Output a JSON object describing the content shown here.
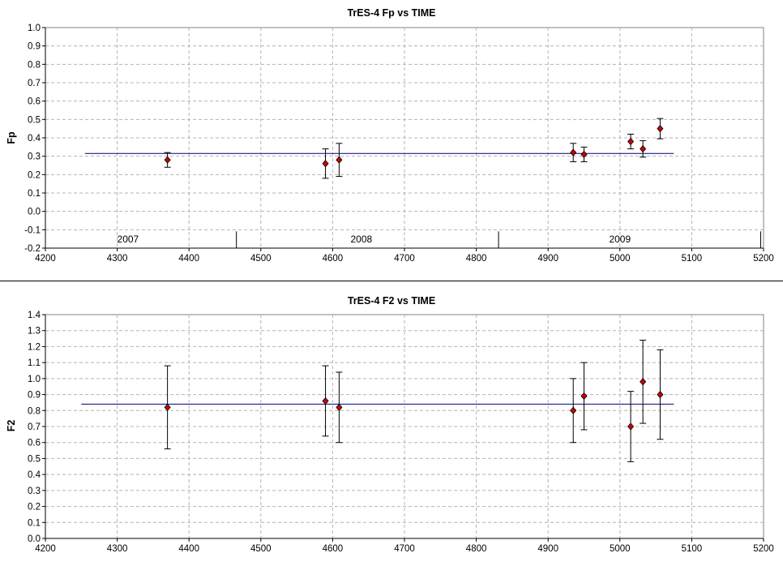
{
  "colors": {
    "marker_fill": "#cc0000",
    "marker_stroke": "#000000",
    "mean_line": "#000080",
    "grid": "#b4b4b4",
    "frame": "#808080",
    "separator": "#000000"
  },
  "chart_data": [
    {
      "type": "scatter",
      "title": "TrES-4 Fp vs TIME",
      "xlabel": "",
      "ylabel": "Fp",
      "xlim": [
        4200,
        5200
      ],
      "ylim": [
        -0.2,
        1.0
      ],
      "x_ticks": [
        4200,
        4300,
        4400,
        4500,
        4600,
        4700,
        4800,
        4900,
        5000,
        5100,
        5200
      ],
      "y_ticks": [
        -0.2,
        -0.1,
        0.0,
        0.1,
        0.2,
        0.3,
        0.4,
        0.5,
        0.6,
        0.7,
        0.8,
        0.9,
        1.0
      ],
      "y_tick_labels": [
        "-0.2",
        "-0.1",
        "0.0",
        "0.1",
        "0.2",
        "0.3",
        "0.4",
        "0.5",
        "0.6",
        "0.7",
        "0.8",
        "0.9",
        "1.0"
      ],
      "grid": true,
      "points": [
        {
          "x": 4370,
          "y": 0.28,
          "err": 0.04
        },
        {
          "x": 4590,
          "y": 0.26,
          "err": 0.08
        },
        {
          "x": 4609,
          "y": 0.28,
          "err": 0.09
        },
        {
          "x": 4935,
          "y": 0.32,
          "err": 0.05
        },
        {
          "x": 4950,
          "y": 0.31,
          "err": 0.04
        },
        {
          "x": 5015,
          "y": 0.38,
          "err": 0.04
        },
        {
          "x": 5032,
          "y": 0.34,
          "err": 0.045
        },
        {
          "x": 5056,
          "y": 0.45,
          "err": 0.055
        }
      ],
      "mean_line": {
        "y": 0.315,
        "x_from": 4255,
        "x_to": 5075
      },
      "year_markers": [
        {
          "label": "2007",
          "x_label": 4315
        },
        {
          "label": "2008",
          "x_label": 4640
        },
        {
          "label": "2009",
          "x_label": 5000
        }
      ],
      "year_separators": [
        4466,
        4831,
        5196
      ]
    },
    {
      "type": "scatter",
      "title": "TrES-4 F2 vs TIME",
      "xlabel": "",
      "ylabel": "F2",
      "xlim": [
        4200,
        5200
      ],
      "ylim": [
        0.0,
        1.4
      ],
      "x_ticks": [
        4200,
        4300,
        4400,
        4500,
        4600,
        4700,
        4800,
        4900,
        5000,
        5100,
        5200
      ],
      "y_ticks": [
        0.0,
        0.1,
        0.2,
        0.3,
        0.4,
        0.5,
        0.6,
        0.7,
        0.8,
        0.9,
        1.0,
        1.1,
        1.2,
        1.3,
        1.4
      ],
      "y_tick_labels": [
        "0.0",
        "0.1",
        "0.2",
        "0.3",
        "0.4",
        "0.5",
        "0.6",
        "0.7",
        "0.8",
        "0.9",
        "1.0",
        "1.1",
        "1.2",
        "1.3",
        "1.4"
      ],
      "grid": true,
      "points": [
        {
          "x": 4370,
          "y": 0.82,
          "err": 0.26
        },
        {
          "x": 4590,
          "y": 0.86,
          "err": 0.22
        },
        {
          "x": 4609,
          "y": 0.82,
          "err": 0.22
        },
        {
          "x": 4935,
          "y": 0.8,
          "err": 0.2
        },
        {
          "x": 4950,
          "y": 0.89,
          "err": 0.21
        },
        {
          "x": 5015,
          "y": 0.7,
          "err": 0.22
        },
        {
          "x": 5032,
          "y": 0.98,
          "err": 0.26
        },
        {
          "x": 5056,
          "y": 0.9,
          "err": 0.28
        }
      ],
      "mean_line": {
        "y": 0.84,
        "x_from": 4250,
        "x_to": 5075
      }
    }
  ]
}
